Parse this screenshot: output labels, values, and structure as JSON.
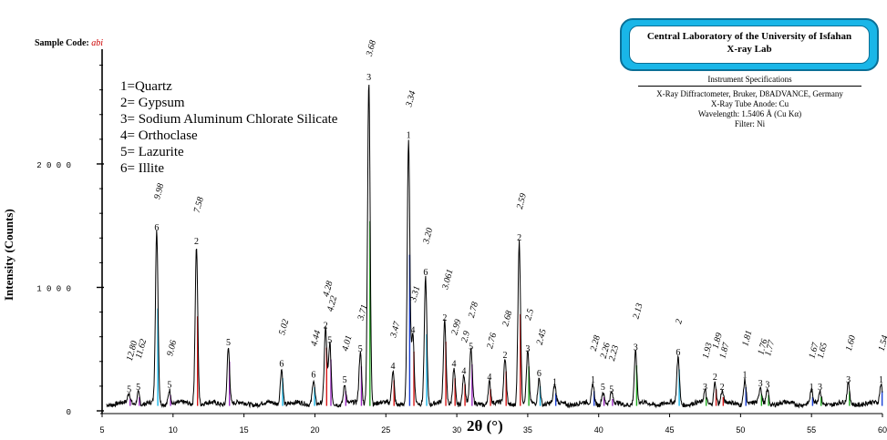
{
  "header": {
    "sample_label": "Sample Code:",
    "sample_code": "abi",
    "lab_title_line1": "Central Laboratory of the University of Isfahan",
    "lab_title_line2": "X-ray Lab",
    "instrument_header": "Instrument Specifications",
    "instrument_line1": "X-Ray Diffractometer, Bruker, D8ADVANCE, Germany",
    "instrument_line2": "X-Ray Tube Anode: Cu",
    "instrument_line3": "Wavelength: 1.5406 Å (Cu Kα)",
    "instrument_line4": "Filter: Ni"
  },
  "legend": [
    "1=Quartz",
    "2= Gypsum",
    "3= Sodium Aluminum Chlorate Silicate",
    "4= Orthoclase",
    "5= Lazurite",
    "6= Illite"
  ],
  "colors": {
    "pattern": "#000000",
    "phase1": "#1a3fd6",
    "phase2": "#d81818",
    "phase3": "#1faa1f",
    "phase5": "#9b2ac0",
    "phase6": "#19b6e8",
    "lab_box": "#19b6e8"
  },
  "chart_data": {
    "type": "line",
    "xlabel": "2θ (°)",
    "ylabel": "Intensity (Counts)",
    "xlim": [
      5,
      60
    ],
    "ylim": [
      0,
      2900
    ],
    "x_ticks": [
      "5",
      "10",
      "15",
      "20",
      "25",
      "30",
      "35",
      "40",
      "45",
      "50",
      "55",
      "60"
    ],
    "y_ticks": [
      "0",
      "1000",
      "2000"
    ],
    "background": 40,
    "peaks": [
      {
        "x": 8.85,
        "y": 1430,
        "phase": 6,
        "d": "9.98"
      },
      {
        "x": 11.65,
        "y": 1320,
        "phase": 2,
        "d": "7.58"
      },
      {
        "x": 7.55,
        "y": 140,
        "phase": 5,
        "d": "11.62"
      },
      {
        "x": 6.9,
        "y": 120,
        "phase": 5,
        "d": "12.80"
      },
      {
        "x": 9.75,
        "y": 160,
        "phase": 5,
        "d": "9.06"
      },
      {
        "x": 13.9,
        "y": 500,
        "phase": 5,
        "d": ""
      },
      {
        "x": 17.65,
        "y": 330,
        "phase": 6,
        "d": "5.02"
      },
      {
        "x": 19.9,
        "y": 240,
        "phase": 6,
        "d": "4.44"
      },
      {
        "x": 20.75,
        "y": 640,
        "phase": 2,
        "d": "4.28"
      },
      {
        "x": 21.05,
        "y": 520,
        "phase": 5,
        "d": "4.22"
      },
      {
        "x": 22.1,
        "y": 200,
        "phase": 5,
        "d": "4.01"
      },
      {
        "x": 23.2,
        "y": 450,
        "phase": 5,
        "d": "3.71"
      },
      {
        "x": 23.8,
        "y": 2650,
        "phase": 3,
        "d": "3.68"
      },
      {
        "x": 25.5,
        "y": 310,
        "phase": 4,
        "d": "3.47"
      },
      {
        "x": 26.6,
        "y": 2180,
        "phase": 1,
        "d": "3.34"
      },
      {
        "x": 26.9,
        "y": 600,
        "phase": 4,
        "d": "3.31"
      },
      {
        "x": 27.8,
        "y": 1070,
        "phase": 6,
        "d": "3.20"
      },
      {
        "x": 29.15,
        "y": 700,
        "phase": 2,
        "d": "3.061"
      },
      {
        "x": 29.8,
        "y": 330,
        "phase": 4,
        "d": "2.99"
      },
      {
        "x": 30.5,
        "y": 270,
        "phase": 4,
        "d": "2.9"
      },
      {
        "x": 31.0,
        "y": 470,
        "phase": 5,
        "d": "2.78"
      },
      {
        "x": 32.3,
        "y": 220,
        "phase": 4,
        "d": "2.76"
      },
      {
        "x": 33.4,
        "y": 400,
        "phase": 2,
        "d": "2.68"
      },
      {
        "x": 34.4,
        "y": 1350,
        "phase": 2,
        "d": "2.59"
      },
      {
        "x": 35.0,
        "y": 450,
        "phase": 3,
        "d": "2.5"
      },
      {
        "x": 35.8,
        "y": 250,
        "phase": 6,
        "d": "2.45"
      },
      {
        "x": 36.9,
        "y": 180,
        "phase": 1,
        "d": ""
      },
      {
        "x": 39.6,
        "y": 200,
        "phase": 1,
        "d": "2.28"
      },
      {
        "x": 40.3,
        "y": 140,
        "phase": 5,
        "d": "2.26"
      },
      {
        "x": 40.9,
        "y": 120,
        "phase": 5,
        "d": "2.23"
      },
      {
        "x": 42.6,
        "y": 460,
        "phase": 3,
        "d": "2.13"
      },
      {
        "x": 45.6,
        "y": 420,
        "phase": 6,
        "d": "2"
      },
      {
        "x": 47.5,
        "y": 140,
        "phase": 3,
        "d": "1.93"
      },
      {
        "x": 48.2,
        "y": 220,
        "phase": 2,
        "d": "1.89"
      },
      {
        "x": 48.7,
        "y": 140,
        "phase": 2,
        "d": "1.87"
      },
      {
        "x": 50.3,
        "y": 240,
        "phase": 1,
        "d": "1.81"
      },
      {
        "x": 51.4,
        "y": 170,
        "phase": 3,
        "d": "1.76"
      },
      {
        "x": 51.9,
        "y": 160,
        "phase": 3,
        "d": "1.77"
      },
      {
        "x": 55.0,
        "y": 140,
        "phase": 1,
        "d": "1.67"
      },
      {
        "x": 55.6,
        "y": 140,
        "phase": 3,
        "d": "1.65"
      },
      {
        "x": 57.6,
        "y": 200,
        "phase": 3,
        "d": "1.60"
      },
      {
        "x": 59.9,
        "y": 200,
        "phase": 1,
        "d": "1.54"
      }
    ]
  }
}
